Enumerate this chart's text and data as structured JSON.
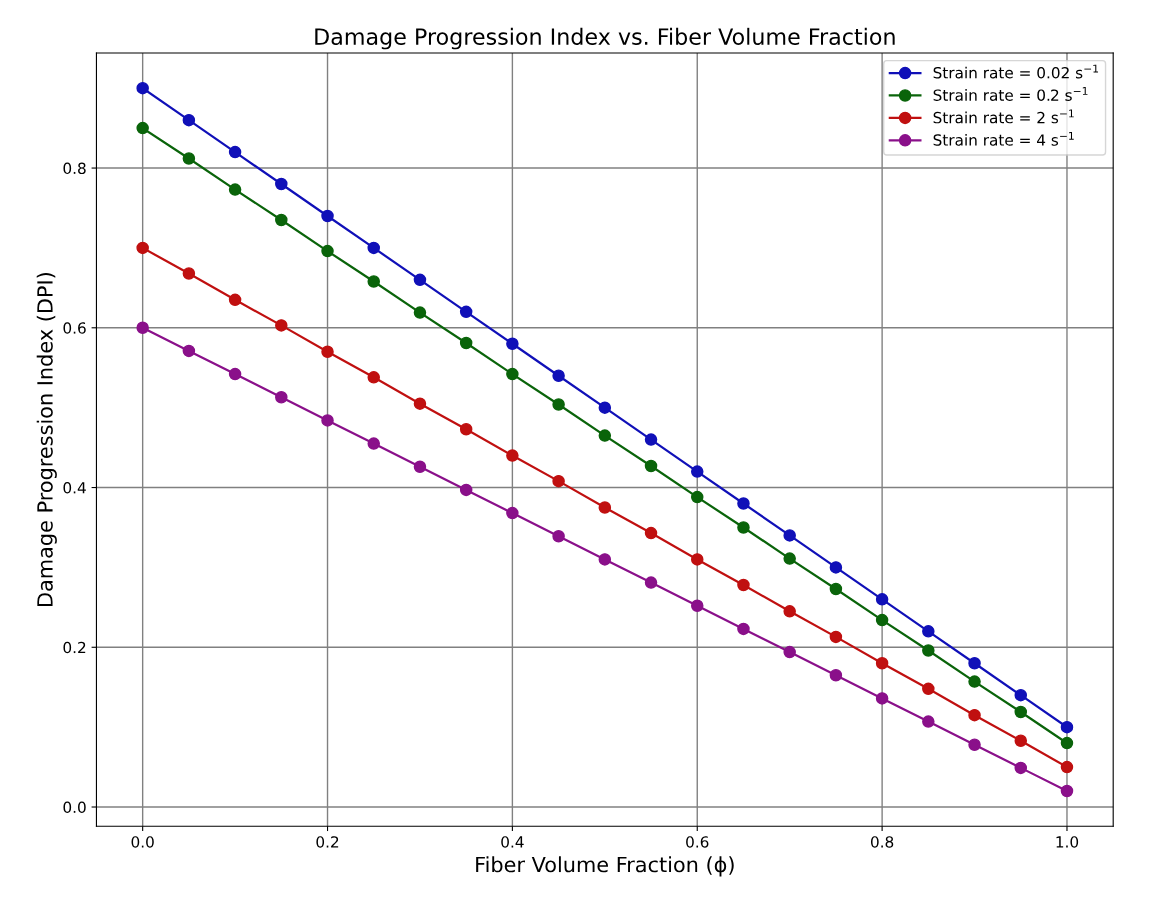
{
  "chart_data": {
    "type": "line",
    "title": "Damage Progression Index vs. Fiber Volume Fraction",
    "xlabel": "Fiber Volume Fraction (ϕ)",
    "ylabel": "Damage Progression Index (DPI)",
    "x": [
      0,
      0.05,
      0.1,
      0.15,
      0.2,
      0.25,
      0.3,
      0.35,
      0.4,
      0.45,
      0.5,
      0.55,
      0.6,
      0.65,
      0.7,
      0.75,
      0.8,
      0.85,
      0.9,
      0.95,
      1.0
    ],
    "series": [
      {
        "name": "Strain rate = 0.02 s$^{−1}$",
        "color": "#1010b8",
        "values": [
          0.9,
          0.86,
          0.82,
          0.78,
          0.74,
          0.7,
          0.66,
          0.62,
          0.58,
          0.54,
          0.5,
          0.46,
          0.42,
          0.38,
          0.34,
          0.3,
          0.26,
          0.22,
          0.18,
          0.14,
          0.1
        ]
      },
      {
        "name": "Strain rate = 0.2 s$^{−1}$",
        "color": "#0a640a",
        "values": [
          0.85,
          0.812,
          0.773,
          0.735,
          0.696,
          0.658,
          0.619,
          0.581,
          0.542,
          0.504,
          0.465,
          0.427,
          0.388,
          0.35,
          0.311,
          0.273,
          0.234,
          0.196,
          0.157,
          0.119,
          0.08
        ]
      },
      {
        "name": "Strain rate = 2 s$^{−1}$",
        "color": "#c01010",
        "values": [
          0.7,
          0.668,
          0.635,
          0.603,
          0.57,
          0.538,
          0.505,
          0.473,
          0.44,
          0.408,
          0.375,
          0.343,
          0.31,
          0.278,
          0.245,
          0.213,
          0.18,
          0.148,
          0.115,
          0.083,
          0.05
        ]
      },
      {
        "name": "Strain rate = 4 s$^{−1}$",
        "color": "#8a108a",
        "values": [
          0.6,
          0.571,
          0.542,
          0.513,
          0.484,
          0.455,
          0.426,
          0.397,
          0.368,
          0.339,
          0.31,
          0.281,
          0.252,
          0.223,
          0.194,
          0.165,
          0.136,
          0.107,
          0.078,
          0.049,
          0.02
        ]
      }
    ],
    "xlim": [
      -0.05,
      1.05
    ],
    "ylim": [
      -0.024,
      0.944
    ],
    "xticks": [
      {
        "value": 0,
        "label": "0.0"
      },
      {
        "value": 0.2,
        "label": "0.2"
      },
      {
        "value": 0.4,
        "label": "0.4"
      },
      {
        "value": 0.6,
        "label": "0.6"
      },
      {
        "value": 0.8,
        "label": "0.8"
      },
      {
        "value": 1.0,
        "label": "1.0"
      }
    ],
    "yticks": [
      {
        "value": 0,
        "label": "0.0"
      },
      {
        "value": 0.2,
        "label": "0.2"
      },
      {
        "value": 0.4,
        "label": "0.4"
      },
      {
        "value": 0.6,
        "label": "0.6"
      },
      {
        "value": 0.8,
        "label": "0.8"
      }
    ],
    "grid": true,
    "legend": "top right",
    "marker": "circle",
    "line_style": "solid"
  }
}
